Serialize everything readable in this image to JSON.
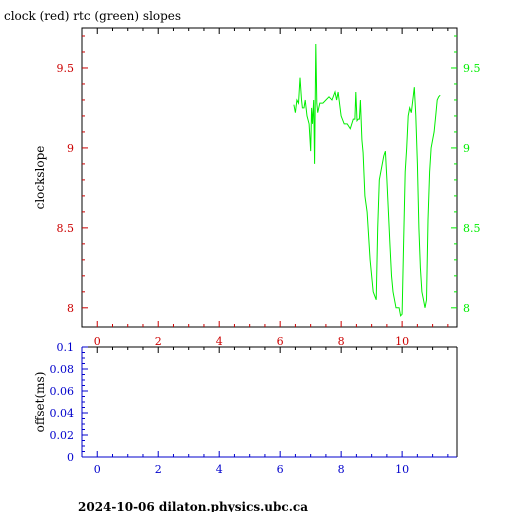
{
  "title": "clock (red) rtc (green) slopes",
  "footer": "2024-10-06 dilaton.physics.ubc.ca",
  "colors": {
    "clock": "#cc0000",
    "rtc": "#00ee00",
    "offset_axis": "#0000cc",
    "frame": "#000000"
  },
  "chart_data": [
    {
      "type": "line",
      "ylabel": "clockslope",
      "xlim": [
        -0.5,
        11.8
      ],
      "ylim": [
        7.88,
        9.75
      ],
      "x_ticks": [
        "0",
        "2",
        "4",
        "6",
        "8",
        "10"
      ],
      "y_ticks_left": [
        "8",
        "8.5",
        "9",
        "9.5"
      ],
      "y_ticks_right": [
        "8",
        "8.5",
        "9",
        "9.5"
      ],
      "series": [
        {
          "name": "rtc",
          "color": "#00ee00",
          "x": [
            6.45,
            6.5,
            6.55,
            6.6,
            6.65,
            6.7,
            6.73,
            6.78,
            6.82,
            6.88,
            6.95,
            7.0,
            7.03,
            7.06,
            7.1,
            7.13,
            7.17,
            7.2,
            7.23,
            7.3,
            7.4,
            7.5,
            7.6,
            7.7,
            7.8,
            7.85,
            7.9,
            8.0,
            8.1,
            8.2,
            8.3,
            8.4,
            8.45,
            8.48,
            8.52,
            8.56,
            8.6,
            8.63,
            8.68,
            8.72,
            8.78,
            8.85,
            8.9,
            8.95,
            9.05,
            9.15,
            9.2,
            9.25,
            9.3,
            9.35,
            9.4,
            9.45,
            9.5,
            9.55,
            9.6,
            9.65,
            9.7,
            9.75,
            9.8,
            9.85,
            9.9,
            9.95,
            10.0,
            10.05,
            10.1,
            10.15,
            10.2,
            10.25,
            10.3,
            10.35,
            10.4,
            10.45,
            10.5,
            10.55,
            10.6,
            10.65,
            10.7,
            10.75,
            10.8,
            10.85,
            10.9,
            10.95,
            11.0,
            11.05,
            11.1,
            11.15,
            11.2,
            11.25
          ],
          "y": [
            9.27,
            9.22,
            9.3,
            9.28,
            9.44,
            9.3,
            9.25,
            9.25,
            9.3,
            9.2,
            9.15,
            8.98,
            9.25,
            9.15,
            9.3,
            8.9,
            9.65,
            9.28,
            9.22,
            9.28,
            9.28,
            9.3,
            9.32,
            9.3,
            9.35,
            9.3,
            9.35,
            9.2,
            9.15,
            9.15,
            9.12,
            9.18,
            9.18,
            9.35,
            9.17,
            9.18,
            9.18,
            9.3,
            9.05,
            8.97,
            8.7,
            8.6,
            8.45,
            8.3,
            8.1,
            8.05,
            8.5,
            8.8,
            8.85,
            8.9,
            8.95,
            8.98,
            8.8,
            8.6,
            8.4,
            8.2,
            8.1,
            8.05,
            8.0,
            8.0,
            8.0,
            7.95,
            7.96,
            8.4,
            8.85,
            9.0,
            9.2,
            9.25,
            9.22,
            9.3,
            9.38,
            9.2,
            8.9,
            8.5,
            8.25,
            8.1,
            8.05,
            8.0,
            8.05,
            8.55,
            8.85,
            9.0,
            9.05,
            9.1,
            9.2,
            9.3,
            9.32,
            9.33
          ]
        }
      ]
    },
    {
      "type": "line",
      "ylabel": "offset(ms)",
      "xlim": [
        -0.5,
        11.8
      ],
      "ylim": [
        0,
        0.1
      ],
      "x_ticks": [
        "0",
        "2",
        "4",
        "6",
        "8",
        "10"
      ],
      "y_ticks": [
        "0",
        "0.02",
        "0.04",
        "0.06",
        "0.08",
        "0.1"
      ],
      "series": []
    }
  ]
}
